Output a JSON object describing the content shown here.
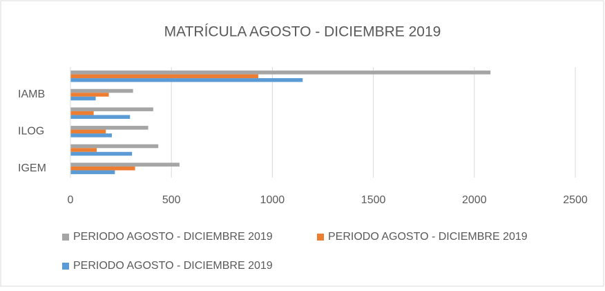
{
  "chart_data": {
    "type": "hbar",
    "title": "MATRÍCULA AGOSTO - DICIEMBRE 2019",
    "categories": [
      "IGEM",
      null,
      "ILOG",
      null,
      "IAMB",
      null
    ],
    "series": [
      {
        "name": "PERIODO AGOSTO - DICIEMBRE  2019",
        "color": "#a5a5a5",
        "values": [
          540,
          435,
          385,
          410,
          310,
          2080
        ]
      },
      {
        "name": "PERIODO AGOSTO - DICIEMBRE  2019",
        "color": "#ed7d31",
        "values": [
          320,
          130,
          175,
          115,
          190,
          930
        ]
      },
      {
        "name": "PERIODO AGOSTO - DICIEMBRE  2019",
        "color": "#5b9bd5",
        "values": [
          220,
          305,
          205,
          295,
          125,
          1150
        ]
      }
    ],
    "xlim": [
      0,
      2500
    ],
    "xticks": [
      0,
      500,
      1000,
      1500,
      2000,
      2500
    ],
    "grid": true
  }
}
